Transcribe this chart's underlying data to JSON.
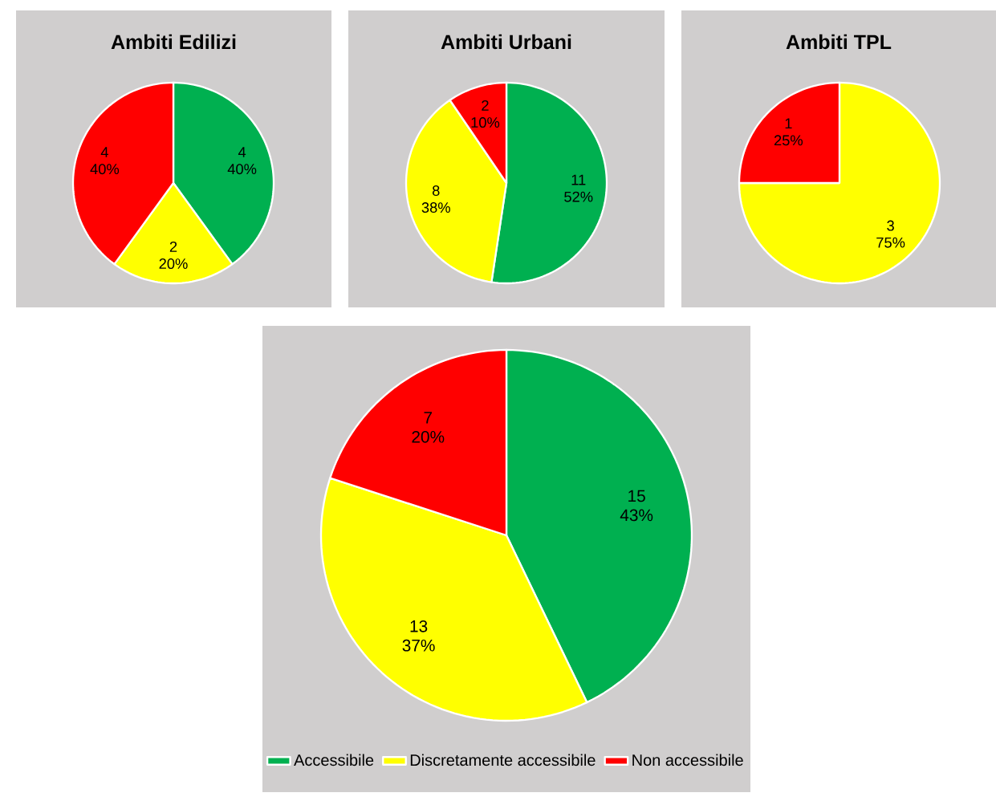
{
  "chart_data": [
    {
      "type": "pie",
      "title": "Ambiti Edilizi",
      "categories": [
        null,
        null,
        null
      ],
      "values": [
        4,
        2,
        4
      ],
      "colors": [
        "#00b050",
        "#ffff00",
        "#ff0000"
      ],
      "value_labels": [
        "4 40%",
        "2 20%",
        "4 40%"
      ],
      "legend": false
    },
    {
      "type": "pie",
      "title": "Ambiti Urbani",
      "categories": [
        null,
        null,
        null
      ],
      "values": [
        11,
        8,
        2
      ],
      "colors": [
        "#00b050",
        "#ffff00",
        "#ff0000"
      ],
      "value_labels": [
        "11 52%",
        "8 38%",
        "2 10%"
      ],
      "legend": false
    },
    {
      "type": "pie",
      "title": "Ambiti TPL",
      "categories": [
        null,
        null
      ],
      "values": [
        3,
        1
      ],
      "colors": [
        "#ffff00",
        "#ff0000"
      ],
      "value_labels": [
        "3 75%",
        "1 25%"
      ],
      "legend": false
    },
    {
      "type": "pie",
      "categories": [
        "Accessibile",
        "Discretamente accessibile",
        "Non accessibile"
      ],
      "values": [
        15,
        13,
        7
      ],
      "colors": [
        "#00b050",
        "#ffff00",
        "#ff0000"
      ],
      "value_labels": [
        "15 43%",
        "13 37%",
        "7 20%"
      ],
      "legend": "bottom"
    }
  ]
}
